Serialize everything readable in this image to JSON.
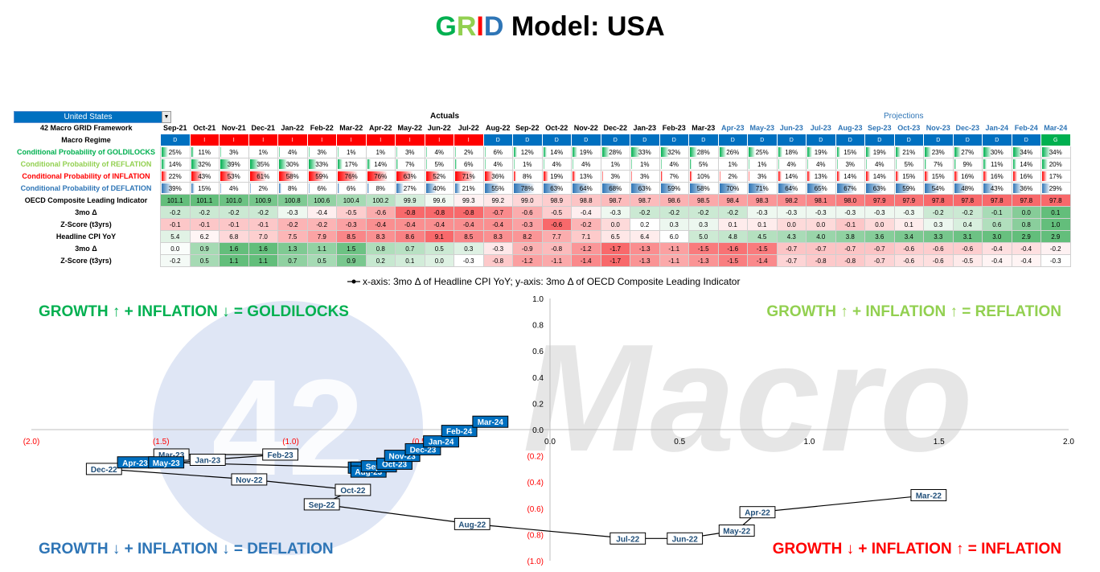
{
  "title": {
    "g": "G",
    "r": "R",
    "i": "I",
    "d": "D",
    "rest": " Model: USA"
  },
  "selector": {
    "value": "United States"
  },
  "section_headers": {
    "actuals": "Actuals",
    "projections": "Projections"
  },
  "months": [
    "Sep-21",
    "Oct-21",
    "Nov-21",
    "Dec-21",
    "Jan-22",
    "Feb-22",
    "Mar-22",
    "Apr-22",
    "May-22",
    "Jun-22",
    "Jul-22",
    "Aug-22",
    "Sep-22",
    "Oct-22",
    "Nov-22",
    "Dec-22",
    "Jan-23",
    "Feb-23",
    "Mar-23",
    "Apr-23",
    "May-23",
    "Jun-23",
    "Jul-23",
    "Aug-23",
    "Sep-23",
    "Oct-23",
    "Nov-23",
    "Dec-23",
    "Jan-24",
    "Feb-24",
    "Mar-24"
  ],
  "projection_start_index": 19,
  "rows": [
    {
      "label": "42 Macro GRID Framework",
      "color": "#000000",
      "kind": "header"
    },
    {
      "label": "Macro Regime",
      "color": "#000000",
      "kind": "regime",
      "values": [
        "D",
        "I",
        "I",
        "I",
        "I",
        "I",
        "I",
        "I",
        "I",
        "I",
        "I",
        "D",
        "D",
        "D",
        "D",
        "D",
        "D",
        "D",
        "D",
        "D",
        "D",
        "D",
        "D",
        "D",
        "D",
        "D",
        "D",
        "D",
        "D",
        "D",
        "G"
      ]
    },
    {
      "label": "Conditional Probability of GOLDILOCKS",
      "color": "#00b050",
      "kind": "prob",
      "bar": "#00b050",
      "values": [
        25,
        11,
        3,
        1,
        4,
        3,
        1,
        1,
        3,
        4,
        2,
        6,
        12,
        14,
        19,
        28,
        33,
        32,
        28,
        26,
        25,
        18,
        19,
        15,
        19,
        21,
        23,
        27,
        30,
        34,
        34
      ]
    },
    {
      "label": "Conditional Probability of REFLATION",
      "color": "#92d050",
      "kind": "prob",
      "bar": "#00b050",
      "values": [
        14,
        32,
        39,
        35,
        30,
        33,
        17,
        14,
        7,
        5,
        6,
        4,
        1,
        4,
        4,
        1,
        1,
        4,
        5,
        1,
        1,
        4,
        4,
        3,
        4,
        5,
        7,
        9,
        11,
        14,
        20
      ]
    },
    {
      "label": "Conditional Probability of INFLATION",
      "color": "#ff0000",
      "kind": "prob",
      "bar": "#ff0000",
      "values": [
        22,
        43,
        53,
        61,
        58,
        59,
        76,
        76,
        63,
        52,
        71,
        36,
        8,
        19,
        13,
        3,
        3,
        7,
        10,
        2,
        3,
        14,
        13,
        14,
        14,
        15,
        15,
        16,
        16,
        16,
        17
      ]
    },
    {
      "label": "Conditional Probability of DEFLATION",
      "color": "#2e75b6",
      "kind": "prob",
      "bar": "#2e75b6",
      "values": [
        39,
        15,
        4,
        2,
        8,
        6,
        6,
        8,
        27,
        40,
        21,
        55,
        78,
        63,
        64,
        68,
        63,
        59,
        58,
        70,
        71,
        64,
        65,
        67,
        63,
        59,
        54,
        48,
        43,
        36,
        29
      ]
    },
    {
      "label": "OECD Composite Leading Indicator",
      "color": "#000000",
      "kind": "heat",
      "decimals": 1,
      "values": [
        101.1,
        101.1,
        101.0,
        100.9,
        100.8,
        100.6,
        100.4,
        100.2,
        99.9,
        99.6,
        99.3,
        99.2,
        99.0,
        98.9,
        98.8,
        98.7,
        98.7,
        98.6,
        98.5,
        98.4,
        98.3,
        98.2,
        98.1,
        98.0,
        97.9,
        97.9,
        97.8,
        97.8,
        97.8,
        97.8,
        97.8
      ]
    },
    {
      "label": "3mo Δ",
      "color": "#000000",
      "kind": "heat",
      "decimals": 1,
      "values": [
        -0.2,
        -0.2,
        -0.2,
        -0.2,
        -0.3,
        -0.4,
        -0.5,
        -0.6,
        -0.8,
        -0.8,
        -0.8,
        -0.7,
        -0.6,
        -0.5,
        -0.4,
        -0.3,
        -0.2,
        -0.2,
        -0.2,
        -0.2,
        -0.3,
        -0.3,
        -0.3,
        -0.3,
        -0.3,
        -0.3,
        -0.2,
        -0.2,
        -0.1,
        0.0,
        0.1
      ]
    },
    {
      "label": "Z-Score (t3yrs)",
      "color": "#000000",
      "kind": "heat",
      "decimals": 1,
      "values": [
        -0.1,
        -0.1,
        -0.1,
        -0.1,
        -0.2,
        -0.2,
        -0.3,
        -0.4,
        -0.4,
        -0.4,
        -0.4,
        -0.4,
        -0.3,
        -0.6,
        -0.2,
        0.0,
        0.2,
        0.3,
        0.3,
        0.1,
        0.1,
        0.0,
        0.0,
        -0.1,
        0.0,
        0.1,
        0.3,
        0.4,
        0.6,
        0.8,
        1.0
      ]
    },
    {
      "label": "Headline CPI YoY",
      "color": "#000000",
      "kind": "heat",
      "invert": true,
      "decimals": 1,
      "values": [
        5.4,
        6.2,
        6.8,
        7.0,
        7.5,
        7.9,
        8.5,
        8.3,
        8.6,
        9.1,
        8.5,
        8.3,
        8.2,
        7.7,
        7.1,
        6.5,
        6.4,
        6.0,
        5.0,
        4.8,
        4.5,
        4.3,
        4.0,
        3.8,
        3.6,
        3.4,
        3.3,
        3.1,
        3.0,
        2.9,
        2.9
      ]
    },
    {
      "label": "3mo Δ",
      "color": "#000000",
      "kind": "heat",
      "decimals": 1,
      "values": [
        0.0,
        0.9,
        1.6,
        1.6,
        1.3,
        1.1,
        1.5,
        0.8,
        0.7,
        0.5,
        0.3,
        -0.3,
        -0.9,
        -0.8,
        -1.2,
        -1.7,
        -1.3,
        -1.1,
        -1.5,
        -1.6,
        -1.5,
        -0.7,
        -0.7,
        -0.7,
        -0.7,
        -0.6,
        -0.6,
        -0.6,
        -0.4,
        -0.4,
        -0.2
      ]
    },
    {
      "label": "Z-Score (t3yrs)",
      "color": "#000000",
      "kind": "heat",
      "decimals": 1,
      "values": [
        -0.2,
        0.5,
        1.1,
        1.1,
        0.7,
        0.5,
        0.9,
        0.2,
        0.1,
        0.0,
        -0.3,
        -0.8,
        -1.2,
        -1.1,
        -1.4,
        -1.7,
        -1.3,
        -1.1,
        -1.3,
        -1.5,
        -1.4,
        -0.7,
        -0.8,
        -0.8,
        -0.7,
        -0.6,
        -0.6,
        -0.5,
        -0.4,
        -0.4,
        -0.3
      ]
    }
  ],
  "quadrants": {
    "goldilocks": {
      "text": "GROWTH ↑  +  INFLATION ↓  =  GOLDILOCKS",
      "color": "#00b050"
    },
    "reflation": {
      "text": "GROWTH ↑  +  INFLATION ↑  =  REFLATION",
      "color": "#92d050"
    },
    "deflation": {
      "text": "GROWTH ↓  +  INFLATION ↓  =  DEFLATION",
      "color": "#2e75b6"
    },
    "inflation": {
      "text": "GROWTH ↓  +  INFLATION ↑  =  INFLATION",
      "color": "#ff0000"
    }
  },
  "watermark": {
    "number": "42",
    "word": "Macro"
  },
  "chart_data": {
    "type": "scatter",
    "legend": "x-axis: 3mo Δ of Headline CPI YoY; y-axis: 3mo Δ of OECD Composite Leading Indicator",
    "xlim": [
      -2.0,
      2.0
    ],
    "ylim": [
      -1.0,
      1.0
    ],
    "xticks": [
      "(2.0)",
      "(1.5)",
      "(1.0)",
      "(0.5)",
      "0.0",
      "0.5",
      "1.0",
      "1.5",
      "2.0"
    ],
    "yticks": [
      "1.0",
      "0.8",
      "0.6",
      "0.4",
      "0.2",
      "0.0",
      "(0.2)",
      "(0.4)",
      "(0.6)",
      "(0.8)",
      "(1.0)"
    ],
    "points": [
      {
        "label": "Mar-22",
        "x": 1.46,
        "y": -0.5,
        "projection": false
      },
      {
        "label": "Apr-22",
        "x": 0.8,
        "y": -0.63,
        "projection": false
      },
      {
        "label": "May-22",
        "x": 0.72,
        "y": -0.77,
        "projection": false
      },
      {
        "label": "Jun-22",
        "x": 0.52,
        "y": -0.83,
        "projection": false
      },
      {
        "label": "Jul-22",
        "x": 0.3,
        "y": -0.83,
        "projection": false
      },
      {
        "label": "Aug-22",
        "x": -0.3,
        "y": -0.72,
        "projection": false
      },
      {
        "label": "Sep-22",
        "x": -0.88,
        "y": -0.57,
        "projection": false
      },
      {
        "label": "Oct-22",
        "x": -0.76,
        "y": -0.46,
        "projection": false
      },
      {
        "label": "Nov-22",
        "x": -1.16,
        "y": -0.38,
        "projection": false
      },
      {
        "label": "Dec-22",
        "x": -1.72,
        "y": -0.3,
        "projection": false
      },
      {
        "label": "Jan-23",
        "x": -1.32,
        "y": -0.23,
        "projection": false
      },
      {
        "label": "Feb-23",
        "x": -1.04,
        "y": -0.19,
        "projection": false
      },
      {
        "label": "Mar-23",
        "x": -1.46,
        "y": -0.19,
        "projection": false
      },
      {
        "label": "Apr-23",
        "x": -1.6,
        "y": -0.25,
        "projection": true
      },
      {
        "label": "May-23",
        "x": -1.48,
        "y": -0.25,
        "projection": true
      },
      {
        "label": "Jun-23",
        "x": -0.71,
        "y": -0.29,
        "projection": true
      },
      {
        "label": "Jul-23",
        "x": -0.7,
        "y": -0.29,
        "projection": true
      },
      {
        "label": "Aug-23",
        "x": -0.7,
        "y": -0.32,
        "projection": true
      },
      {
        "label": "Sep-23",
        "x": -0.66,
        "y": -0.28,
        "projection": true
      },
      {
        "label": "Oct-23",
        "x": -0.6,
        "y": -0.26,
        "projection": true
      },
      {
        "label": "Nov-23",
        "x": -0.57,
        "y": -0.2,
        "projection": true
      },
      {
        "label": "Dec-23",
        "x": -0.49,
        "y": -0.15,
        "projection": true
      },
      {
        "label": "Jan-24",
        "x": -0.42,
        "y": -0.09,
        "projection": true
      },
      {
        "label": "Feb-24",
        "x": -0.35,
        "y": -0.01,
        "projection": true
      },
      {
        "label": "Mar-24",
        "x": -0.23,
        "y": 0.06,
        "projection": true
      }
    ]
  }
}
